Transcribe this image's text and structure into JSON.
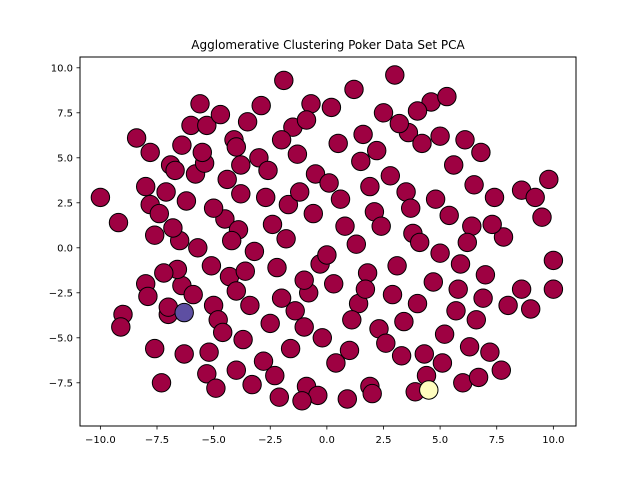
{
  "chart_data": {
    "type": "scatter",
    "title": "Agglomerative Clustering Poker Data Set PCA",
    "xlabel": "",
    "ylabel": "",
    "xlim": [
      -10.9,
      11.0
    ],
    "ylim": [
      -9.9,
      10.6
    ],
    "xticks": [
      -10.0,
      -7.5,
      -5.0,
      -2.5,
      0.0,
      2.5,
      5.0,
      7.5,
      10.0
    ],
    "yticks": [
      -7.5,
      -5.0,
      -2.5,
      0.0,
      2.5,
      5.0,
      7.5,
      10.0
    ],
    "xtick_labels": [
      "−10.0",
      "−7.5",
      "−5.0",
      "−2.5",
      "0.0",
      "2.5",
      "5.0",
      "7.5",
      "10.0"
    ],
    "ytick_labels": [
      "−7.5",
      "−5.0",
      "−2.5",
      "0.0",
      "2.5",
      "5.0",
      "7.5",
      "10.0"
    ],
    "grid": false,
    "marker_edge_color": "#000000",
    "series": [
      {
        "color": "#9e0142",
        "points": [
          [
            -10.0,
            2.8
          ],
          [
            -9.2,
            1.4
          ],
          [
            -9.0,
            -3.7
          ],
          [
            -9.1,
            -4.4
          ],
          [
            -8.4,
            6.1
          ],
          [
            -7.8,
            5.3
          ],
          [
            -8.0,
            3.4
          ],
          [
            -8.0,
            -2.0
          ],
          [
            -7.9,
            -2.7
          ],
          [
            -7.6,
            0.7
          ],
          [
            -7.8,
            2.4
          ],
          [
            -7.4,
            1.9
          ],
          [
            -7.6,
            -5.6
          ],
          [
            -7.3,
            -7.5
          ],
          [
            -7.0,
            -3.7
          ],
          [
            -7.0,
            -3.3
          ],
          [
            -7.1,
            3.1
          ],
          [
            -6.9,
            4.6
          ],
          [
            -6.7,
            4.3
          ],
          [
            -6.5,
            0.4
          ],
          [
            -6.4,
            -2.1
          ],
          [
            -6.3,
            -5.9
          ],
          [
            -6.0,
            6.8
          ],
          [
            -5.8,
            4.1
          ],
          [
            -5.6,
            8.0
          ],
          [
            -5.4,
            4.7
          ],
          [
            -5.5,
            5.3
          ],
          [
            -5.2,
            -5.8
          ],
          [
            -5.0,
            -3.2
          ],
          [
            -5.3,
            -7.0
          ],
          [
            -4.9,
            -7.8
          ],
          [
            -4.8,
            -4.0
          ],
          [
            -4.5,
            1.6
          ],
          [
            -4.3,
            -1.6
          ],
          [
            -4.1,
            6.0
          ],
          [
            -4.0,
            5.6
          ],
          [
            -3.8,
            3.0
          ],
          [
            -3.6,
            -1.3
          ],
          [
            -3.4,
            -3.2
          ],
          [
            -3.5,
            7.0
          ],
          [
            -3.3,
            -7.6
          ],
          [
            -3.0,
            5.0
          ],
          [
            -2.9,
            7.9
          ],
          [
            -2.8,
            -6.3
          ],
          [
            -2.6,
            4.3
          ],
          [
            -2.4,
            1.3
          ],
          [
            -2.2,
            -1.1
          ],
          [
            -2.0,
            -2.8
          ],
          [
            -2.1,
            -8.3
          ],
          [
            -1.9,
            9.3
          ],
          [
            -1.7,
            2.4
          ],
          [
            -1.5,
            6.7
          ],
          [
            -1.4,
            -3.5
          ],
          [
            -1.3,
            5.2
          ],
          [
            -1.0,
            -4.4
          ],
          [
            -0.9,
            -7.7
          ],
          [
            -0.7,
            8.0
          ],
          [
            -0.5,
            4.1
          ],
          [
            -0.3,
            -0.9
          ],
          [
            0.1,
            3.6
          ],
          [
            0.3,
            -2.0
          ],
          [
            0.5,
            5.8
          ],
          [
            0.8,
            1.2
          ],
          [
            1.0,
            -5.7
          ],
          [
            1.2,
            8.8
          ],
          [
            1.4,
            -3.1
          ],
          [
            1.6,
            6.3
          ],
          [
            1.9,
            -7.7
          ],
          [
            2.1,
            2.0
          ],
          [
            2.3,
            -4.5
          ],
          [
            2.5,
            7.5
          ],
          [
            2.8,
            4.0
          ],
          [
            3.0,
            9.6
          ],
          [
            3.1,
            -1.0
          ],
          [
            3.3,
            -6.0
          ],
          [
            3.6,
            6.4
          ],
          [
            3.8,
            0.8
          ],
          [
            4.0,
            -3.1
          ],
          [
            4.2,
            5.8
          ],
          [
            4.4,
            -7.1
          ],
          [
            4.6,
            8.1
          ],
          [
            4.8,
            2.7
          ],
          [
            5.0,
            -0.3
          ],
          [
            5.2,
            -4.8
          ],
          [
            5.3,
            8.4
          ],
          [
            5.6,
            4.6
          ],
          [
            5.8,
            -2.3
          ],
          [
            6.0,
            -7.5
          ],
          [
            6.1,
            6.0
          ],
          [
            6.4,
            1.2
          ],
          [
            6.6,
            -4.0
          ],
          [
            6.8,
            5.3
          ],
          [
            7.0,
            -1.5
          ],
          [
            7.2,
            -5.8
          ],
          [
            7.4,
            2.8
          ],
          [
            7.7,
            -6.8
          ],
          [
            7.8,
            0.6
          ],
          [
            8.0,
            -3.2
          ],
          [
            8.6,
            3.2
          ],
          [
            8.6,
            -2.3
          ],
          [
            9.0,
            -3.4
          ],
          [
            9.2,
            2.8
          ],
          [
            9.5,
            1.7
          ],
          [
            9.8,
            3.8
          ],
          [
            10.0,
            -0.7
          ],
          [
            10.0,
            -2.3
          ],
          [
            -6.2,
            2.6
          ],
          [
            -5.7,
            0.0
          ],
          [
            -5.0,
            2.2
          ],
          [
            -4.4,
            3.8
          ],
          [
            -3.9,
            1.0
          ],
          [
            -3.2,
            -0.2
          ],
          [
            -2.7,
            2.8
          ],
          [
            -1.8,
            0.5
          ],
          [
            -1.2,
            3.1
          ],
          [
            -0.6,
            1.9
          ],
          [
            0.0,
            -0.4
          ],
          [
            0.6,
            2.7
          ],
          [
            1.3,
            0.2
          ],
          [
            1.8,
            -1.4
          ],
          [
            2.4,
            1.2
          ],
          [
            2.9,
            -2.6
          ],
          [
            3.5,
            3.1
          ],
          [
            4.1,
            0.3
          ],
          [
            4.7,
            -1.9
          ],
          [
            5.4,
            1.8
          ],
          [
            5.9,
            -0.9
          ],
          [
            6.5,
            3.5
          ],
          [
            -6.6,
            -1.2
          ],
          [
            -5.9,
            -2.6
          ],
          [
            -5.1,
            -1.0
          ],
          [
            -4.6,
            -4.7
          ],
          [
            -4.0,
            -2.4
          ],
          [
            -3.7,
            -5.1
          ],
          [
            -2.5,
            -4.2
          ],
          [
            -1.6,
            -5.6
          ],
          [
            -0.8,
            -2.5
          ],
          [
            -0.2,
            -5.0
          ],
          [
            0.4,
            -6.4
          ],
          [
            1.1,
            -4.0
          ],
          [
            1.7,
            -2.3
          ],
          [
            2.6,
            -5.3
          ],
          [
            3.4,
            -4.1
          ],
          [
            4.3,
            -5.9
          ],
          [
            5.1,
            -6.4
          ],
          [
            5.7,
            -3.5
          ],
          [
            6.3,
            -5.5
          ],
          [
            6.9,
            -2.8
          ],
          [
            -6.4,
            5.7
          ],
          [
            -5.3,
            6.8
          ],
          [
            -4.7,
            7.4
          ],
          [
            -3.8,
            4.6
          ],
          [
            -2.0,
            6.0
          ],
          [
            -0.9,
            7.1
          ],
          [
            0.2,
            7.8
          ],
          [
            1.5,
            4.8
          ],
          [
            2.2,
            5.4
          ],
          [
            3.2,
            6.9
          ],
          [
            4.0,
            7.6
          ],
          [
            5.0,
            6.2
          ],
          [
            -7.2,
            -1.4
          ],
          [
            -6.8,
            1.1
          ],
          [
            -4.2,
            0.4
          ],
          [
            -1.0,
            -1.8
          ],
          [
            1.9,
            3.4
          ],
          [
            3.7,
            2.2
          ],
          [
            6.2,
            0.3
          ],
          [
            7.3,
            1.3
          ],
          [
            -2.3,
            -7.1
          ],
          [
            -0.4,
            -8.2
          ],
          [
            0.9,
            -8.4
          ],
          [
            2.0,
            -8.1
          ],
          [
            3.9,
            -8.0
          ],
          [
            6.7,
            -7.2
          ],
          [
            -1.1,
            -8.5
          ],
          [
            -4.0,
            -6.8
          ]
        ]
      },
      {
        "color": "#5e4fa2",
        "points": [
          [
            -6.3,
            -3.6
          ]
        ]
      },
      {
        "color": "#fffdbf",
        "points": [
          [
            4.5,
            -7.9
          ]
        ]
      }
    ]
  }
}
